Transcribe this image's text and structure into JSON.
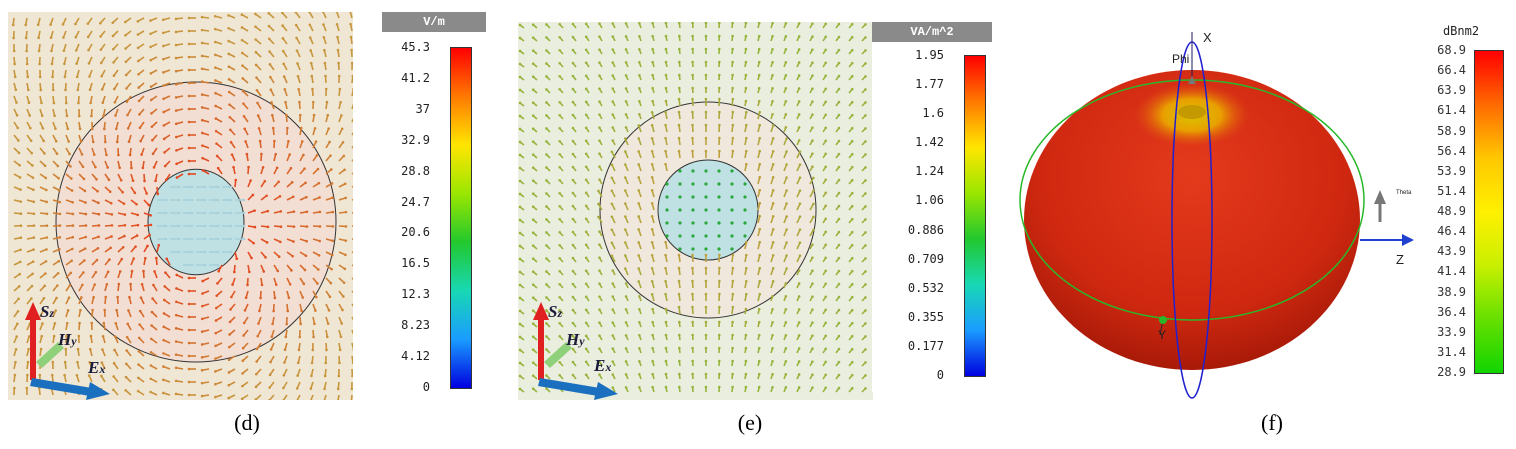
{
  "panel_d": {
    "legend_unit": "V/m",
    "ticks": [
      "45.3",
      "41.2",
      "37",
      "32.9",
      "28.8",
      "24.7",
      "20.6",
      "16.5",
      "12.3",
      "8.23",
      "4.12",
      "0"
    ],
    "axis": {
      "s": "S",
      "s_sub": "z",
      "h": "H",
      "h_sub": "y",
      "e": "E",
      "e_sub": "x"
    },
    "caption": "(d)"
  },
  "panel_e": {
    "legend_unit": "VA/m^2",
    "ticks": [
      "1.95",
      "1.77",
      "1.6",
      "1.42",
      "1.24",
      "1.06",
      "0.886",
      "0.709",
      "0.532",
      "0.355",
      "0.177",
      "0"
    ],
    "axis": {
      "s": "S",
      "s_sub": "z",
      "h": "H",
      "h_sub": "y",
      "e": "E",
      "e_sub": "x"
    },
    "caption": "(e)"
  },
  "panel_f": {
    "legend_unit": "dBnm2",
    "ticks": [
      "68.9",
      "66.4",
      "63.9",
      "61.4",
      "58.9",
      "56.4",
      "53.9",
      "51.4",
      "48.9",
      "46.4",
      "43.9",
      "41.4",
      "38.9",
      "36.4",
      "33.9",
      "31.4",
      "28.9"
    ],
    "labels": {
      "x": "X",
      "z": "Z",
      "y": "Y",
      "phi": "Phi",
      "theta": "Theta"
    },
    "caption": "(f)"
  },
  "colors": {
    "arrow_d": "#c9a24a",
    "arrow_e": "#b8c24a",
    "pattern": "#d42a12",
    "accent_blue": "#1a6fbf"
  }
}
